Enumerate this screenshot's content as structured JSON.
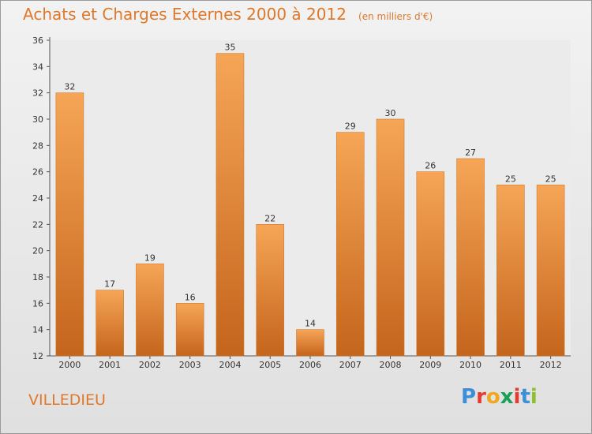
{
  "header": {
    "title": "Achats et Charges Externes 2000 à 2012",
    "unit": "(en milliers d'€)"
  },
  "footer": {
    "commune": "VILLEDIEU",
    "logo": {
      "letters": [
        "P",
        "r",
        "o",
        "x",
        "i",
        "t",
        "i"
      ],
      "colors": [
        "#3a8fd6",
        "#e8392f",
        "#f2a81d",
        "#1b9e55",
        "#e8392f",
        "#3a8fd6",
        "#8fbf2e"
      ]
    }
  },
  "colors": {
    "bar_top": "#f6a556",
    "bar_bottom": "#c4651c",
    "accent": "#e0782c"
  },
  "chart_data": {
    "type": "bar",
    "title": "Achats et Charges Externes 2000 à 2012",
    "subtitle": "(en milliers d'€)",
    "categories": [
      "2000",
      "2001",
      "2002",
      "2003",
      "2004",
      "2005",
      "2006",
      "2007",
      "2008",
      "2009",
      "2010",
      "2011",
      "2012"
    ],
    "values": [
      32,
      17,
      19,
      16,
      35,
      22,
      14,
      29,
      30,
      26,
      27,
      25,
      25
    ],
    "data_labels": [
      "32",
      "17",
      "19",
      "16",
      "35",
      "22",
      "14",
      "29",
      "30",
      "26",
      "27",
      "25",
      "25"
    ],
    "ylim": [
      12,
      36
    ],
    "yticks": [
      12,
      14,
      16,
      18,
      20,
      22,
      24,
      26,
      28,
      30,
      32,
      34,
      36
    ],
    "grid": false,
    "legend": "none"
  }
}
